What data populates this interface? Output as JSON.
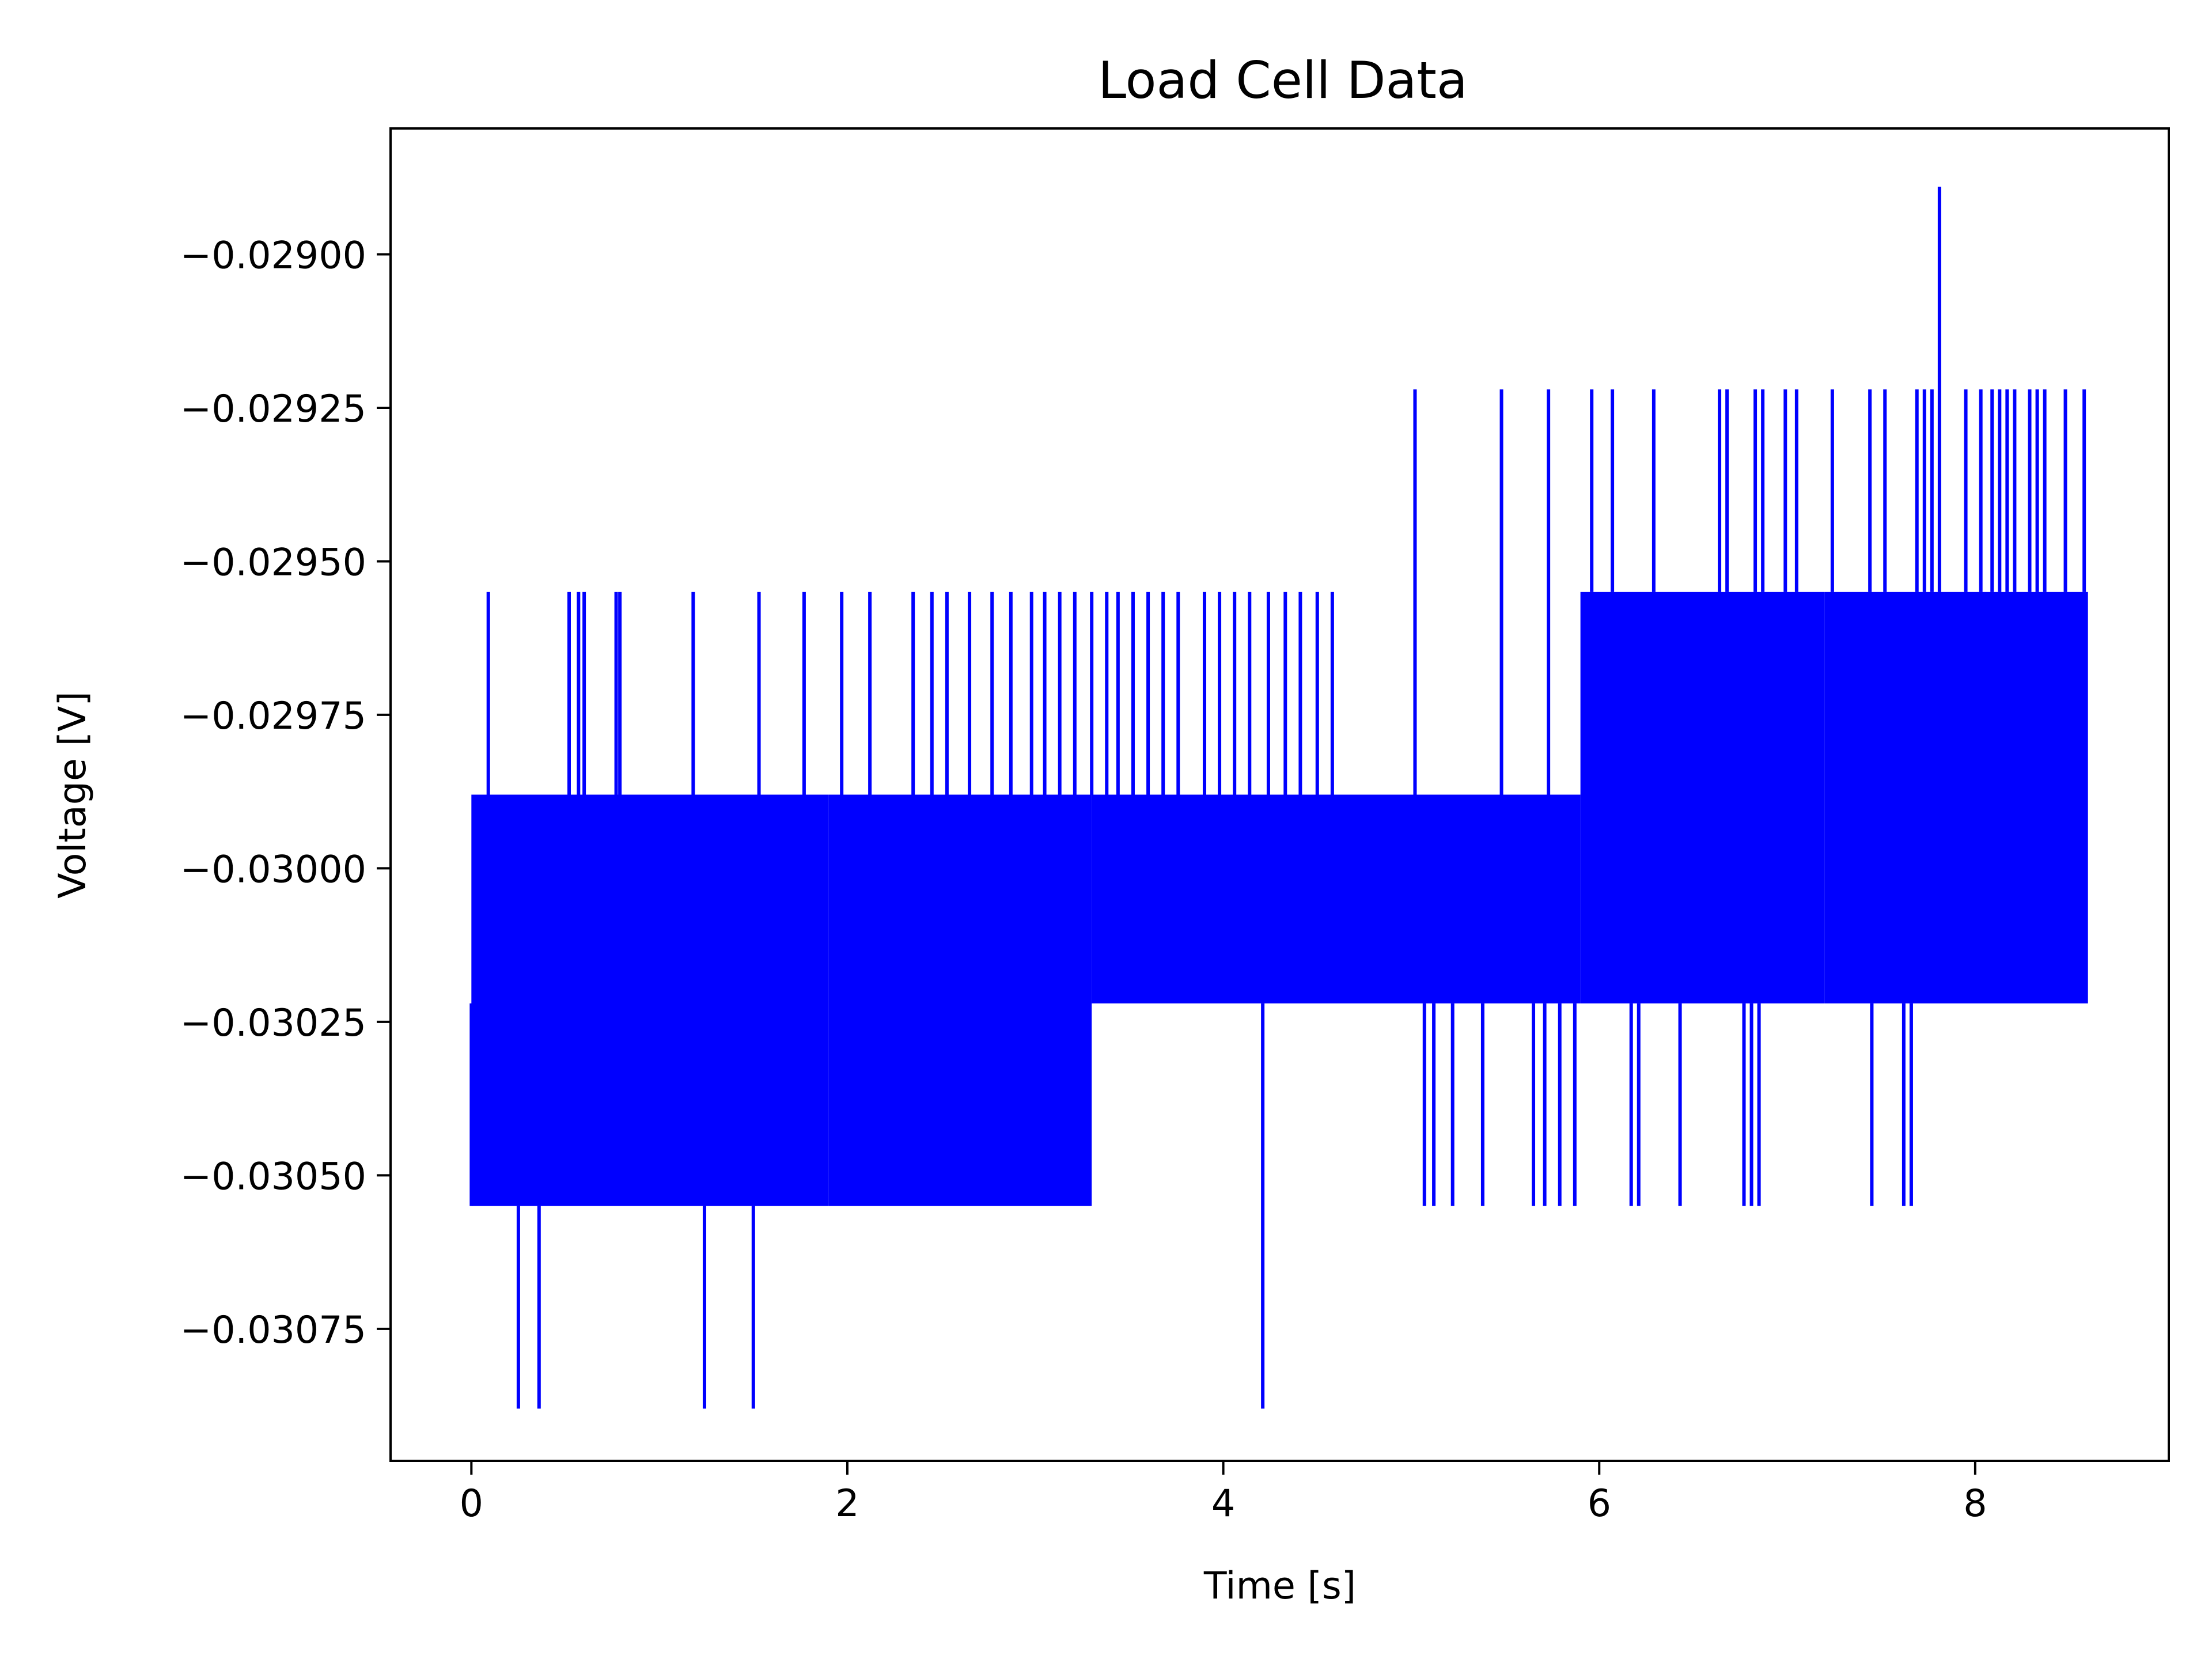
{
  "chart_data": {
    "type": "line",
    "title": "Load Cell Data",
    "xlabel": "Time [s]",
    "ylabel": "Voltage [V]",
    "xlim": [
      -0.43,
      9.03
    ],
    "ylim": [
      -0.030965,
      -0.028795
    ],
    "xticks": [
      0,
      2,
      4,
      6,
      8
    ],
    "xtick_labels": [
      "0",
      "2",
      "4",
      "6",
      "8"
    ],
    "yticks": [
      -0.029,
      -0.02925,
      -0.0295,
      -0.02975,
      -0.03,
      -0.03025,
      -0.0305,
      -0.03075
    ],
    "ytick_labels": [
      "−0.02900",
      "−0.02925",
      "−0.02950",
      "−0.02975",
      "−0.03000",
      "−0.03025",
      "−0.03050",
      "−0.03075"
    ],
    "grid": false,
    "legend": "none",
    "series": [
      {
        "color": "#0000ff",
        "levels": [
          -0.02889,
          -0.02922,
          -0.02955,
          -0.02988,
          -0.03022,
          -0.03055,
          -0.03088
        ],
        "bands": [
          {
            "x": [
              0.0,
              1.9
            ],
            "low": -0.03055,
            "high": -0.02988
          },
          {
            "x": [
              1.9,
              3.3
            ],
            "low": -0.03055,
            "high": -0.02988
          },
          {
            "x": [
              3.3,
              5.9
            ],
            "low": -0.03022,
            "high": -0.02988
          },
          {
            "x": [
              5.9,
              7.2
            ],
            "low": -0.03022,
            "high": -0.02955
          },
          {
            "x": [
              7.2,
              8.6
            ],
            "low": -0.03022,
            "high": -0.02955
          }
        ],
        "spikes_high": [
          {
            "x": 0.09,
            "y": -0.02955
          },
          {
            "x": 0.52,
            "y": -0.02955
          },
          {
            "x": 0.57,
            "y": -0.02955
          },
          {
            "x": 0.6,
            "y": -0.02955
          },
          {
            "x": 0.77,
            "y": -0.02955
          },
          {
            "x": 0.79,
            "y": -0.02955
          },
          {
            "x": 1.18,
            "y": -0.02955
          },
          {
            "x": 1.53,
            "y": -0.02955
          },
          {
            "x": 1.77,
            "y": -0.02955
          },
          {
            "x": 1.97,
            "y": -0.02955
          },
          {
            "x": 2.12,
            "y": -0.02955
          },
          {
            "x": 2.35,
            "y": -0.02955
          },
          {
            "x": 2.45,
            "y": -0.02955
          },
          {
            "x": 2.53,
            "y": -0.02955
          },
          {
            "x": 2.65,
            "y": -0.02955
          },
          {
            "x": 2.77,
            "y": -0.02955
          },
          {
            "x": 2.87,
            "y": -0.02955
          },
          {
            "x": 2.98,
            "y": -0.02955
          },
          {
            "x": 3.05,
            "y": -0.02955
          },
          {
            "x": 3.13,
            "y": -0.02955
          },
          {
            "x": 3.21,
            "y": -0.02955
          },
          {
            "x": 3.3,
            "y": -0.02955
          },
          {
            "x": 3.38,
            "y": -0.02955
          },
          {
            "x": 3.44,
            "y": -0.02955
          },
          {
            "x": 3.52,
            "y": -0.02955
          },
          {
            "x": 3.6,
            "y": -0.02955
          },
          {
            "x": 3.68,
            "y": -0.02955
          },
          {
            "x": 3.76,
            "y": -0.02955
          },
          {
            "x": 3.9,
            "y": -0.02955
          },
          {
            "x": 3.98,
            "y": -0.02955
          },
          {
            "x": 4.06,
            "y": -0.02955
          },
          {
            "x": 4.14,
            "y": -0.02955
          },
          {
            "x": 4.24,
            "y": -0.02955
          },
          {
            "x": 4.33,
            "y": -0.02955
          },
          {
            "x": 4.41,
            "y": -0.02955
          },
          {
            "x": 4.5,
            "y": -0.02955
          },
          {
            "x": 4.58,
            "y": -0.02955
          },
          {
            "x": 5.02,
            "y": -0.02922
          },
          {
            "x": 5.48,
            "y": -0.02922
          },
          {
            "x": 5.73,
            "y": -0.02922
          },
          {
            "x": 5.96,
            "y": -0.02922
          },
          {
            "x": 6.07,
            "y": -0.02922
          },
          {
            "x": 6.29,
            "y": -0.02922
          },
          {
            "x": 6.64,
            "y": -0.02922
          },
          {
            "x": 6.68,
            "y": -0.02922
          },
          {
            "x": 6.83,
            "y": -0.02922
          },
          {
            "x": 6.87,
            "y": -0.02922
          },
          {
            "x": 6.99,
            "y": -0.02922
          },
          {
            "x": 7.05,
            "y": -0.02922
          },
          {
            "x": 7.24,
            "y": -0.02922
          },
          {
            "x": 7.44,
            "y": -0.02922
          },
          {
            "x": 7.52,
            "y": -0.02922
          },
          {
            "x": 7.69,
            "y": -0.02922
          },
          {
            "x": 7.73,
            "y": -0.02922
          },
          {
            "x": 7.77,
            "y": -0.02922
          },
          {
            "x": 7.81,
            "y": -0.02889
          },
          {
            "x": 7.95,
            "y": -0.02922
          },
          {
            "x": 8.03,
            "y": -0.02922
          },
          {
            "x": 8.09,
            "y": -0.02922
          },
          {
            "x": 8.13,
            "y": -0.02922
          },
          {
            "x": 8.17,
            "y": -0.02922
          },
          {
            "x": 8.21,
            "y": -0.02922
          },
          {
            "x": 8.29,
            "y": -0.02922
          },
          {
            "x": 8.33,
            "y": -0.02922
          },
          {
            "x": 8.37,
            "y": -0.02922
          },
          {
            "x": 8.48,
            "y": -0.02922
          },
          {
            "x": 8.58,
            "y": -0.02922
          }
        ],
        "spikes_low": [
          {
            "x": 0.25,
            "y": -0.03088
          },
          {
            "x": 0.36,
            "y": -0.03088
          },
          {
            "x": 1.24,
            "y": -0.03088
          },
          {
            "x": 1.5,
            "y": -0.03088
          },
          {
            "x": 4.21,
            "y": -0.03088
          },
          {
            "x": 5.07,
            "y": -0.03055
          },
          {
            "x": 5.12,
            "y": -0.03055
          },
          {
            "x": 5.22,
            "y": -0.03055
          },
          {
            "x": 5.38,
            "y": -0.03055
          },
          {
            "x": 5.65,
            "y": -0.03055
          },
          {
            "x": 5.71,
            "y": -0.03055
          },
          {
            "x": 5.79,
            "y": -0.03055
          },
          {
            "x": 5.87,
            "y": -0.03055
          },
          {
            "x": 6.17,
            "y": -0.03055
          },
          {
            "x": 6.21,
            "y": -0.03055
          },
          {
            "x": 6.43,
            "y": -0.03055
          },
          {
            "x": 6.77,
            "y": -0.03055
          },
          {
            "x": 6.81,
            "y": -0.03055
          },
          {
            "x": 6.85,
            "y": -0.03055
          },
          {
            "x": 7.45,
            "y": -0.03055
          },
          {
            "x": 7.62,
            "y": -0.03055
          },
          {
            "x": 7.66,
            "y": -0.03055
          }
        ]
      }
    ]
  }
}
